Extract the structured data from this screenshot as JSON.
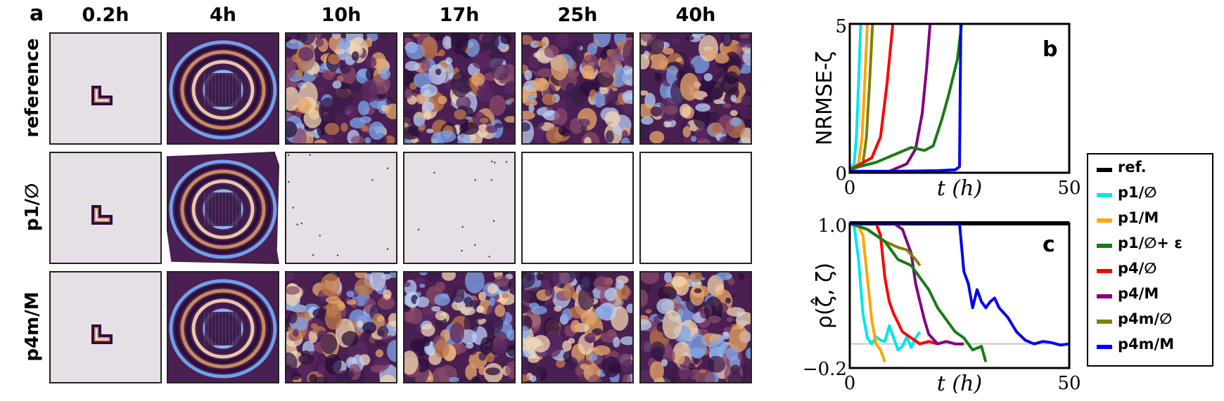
{
  "panel_letters": {
    "a": "a",
    "b": "b",
    "c": "c"
  },
  "columns": [
    "0.2h",
    "4h",
    "10h",
    "17h",
    "25h",
    "40h"
  ],
  "rows": [
    {
      "label": "reference",
      "tiles": [
        "flat-L",
        "field",
        "field",
        "field",
        "field",
        "field"
      ]
    },
    {
      "label": "p1/∅",
      "tiles": [
        "flat-L",
        "field-ragged",
        "flat-dots",
        "flat-dots",
        "empty",
        "empty"
      ]
    },
    {
      "label": "p4m/M",
      "tiles": [
        "flat-L",
        "field",
        "field",
        "field",
        "field",
        "field"
      ]
    }
  ],
  "colors": {
    "ref": "#000000",
    "p1_empty": "#00e5ee",
    "p1_M": "#ffa500",
    "p1_empty_eps": "#1a7a1a",
    "p4_empty": "#ff0000",
    "p4_M": "#800080",
    "p4m_empty": "#808000",
    "p4m_M": "#0000ee"
  },
  "legend": {
    "items": [
      "ref.",
      "p1/∅",
      "p1/M",
      "p1/∅+ ε",
      "p4/∅",
      "p4/M",
      "p4m/∅",
      "p4m/M"
    ]
  },
  "chart_data": [
    {
      "panel": "b",
      "type": "line",
      "ylabel": "NRMSE-ζ",
      "xlabel": "t (h)",
      "xlim": [
        0,
        50
      ],
      "ylim": [
        0,
        5
      ],
      "xticks": [
        "0",
        "50"
      ],
      "yticks": [
        "0",
        "5"
      ],
      "series": [
        {
          "name": "p1/∅",
          "x": [
            0,
            1,
            1.5,
            2.0,
            2.5
          ],
          "y": [
            0.1,
            0.3,
            1.2,
            3.0,
            5
          ]
        },
        {
          "name": "p1/M",
          "x": [
            0,
            2,
            2.8,
            3.4,
            4.0
          ],
          "y": [
            0.1,
            0.3,
            1.2,
            3.0,
            5
          ]
        },
        {
          "name": "p4m/∅",
          "x": [
            0,
            3,
            3.8,
            4.5,
            5.2
          ],
          "y": [
            0.1,
            0.3,
            1.2,
            3.0,
            5
          ]
        },
        {
          "name": "p4/∅",
          "x": [
            0,
            5,
            7,
            8.5,
            9.8
          ],
          "y": [
            0.1,
            0.5,
            1.2,
            3.0,
            5
          ]
        },
        {
          "name": "p4/M",
          "x": [
            0,
            9,
            13,
            15,
            16.5,
            17.5,
            18.3
          ],
          "y": [
            0.05,
            0.05,
            0.3,
            0.8,
            2.0,
            3.5,
            5
          ]
        },
        {
          "name": "p1/∅+ ε",
          "x": [
            0,
            2,
            6,
            10,
            14,
            17,
            19,
            21,
            22.5,
            24.5,
            25.5
          ],
          "y": [
            0.1,
            0.2,
            0.35,
            0.6,
            0.85,
            0.75,
            0.9,
            1.8,
            2.6,
            3.8,
            5
          ]
        },
        {
          "name": "p4m/M",
          "x": [
            0,
            10,
            20,
            24,
            25.0,
            25.3
          ],
          "y": [
            0.05,
            0.05,
            0.07,
            0.1,
            0.2,
            5
          ]
        }
      ]
    },
    {
      "panel": "c",
      "type": "line",
      "ylabel": "ρ(ζ̂, ζ)",
      "xlabel": "t (h)",
      "xlim": [
        0,
        50
      ],
      "ylim": [
        -0.2,
        1.0
      ],
      "xticks": [
        "0",
        "50"
      ],
      "yticks": [
        "1.0",
        "−0.2"
      ],
      "reference_line": 0.0,
      "series": [
        {
          "name": "ref.",
          "x": [
            0,
            50
          ],
          "y": [
            1.0,
            1.0
          ]
        },
        {
          "name": "p1/∅",
          "x": [
            0,
            1,
            2,
            3,
            4,
            5,
            6,
            7,
            8,
            9,
            10,
            11,
            12,
            13,
            14,
            15,
            16
          ],
          "y": [
            1.0,
            0.98,
            0.7,
            0.25,
            0.05,
            0.0,
            0.06,
            0.03,
            0.02,
            0.15,
            0.05,
            -0.05,
            -0.02,
            0.06,
            -0.03,
            0.05,
            0.1
          ]
        },
        {
          "name": "p1/M",
          "x": [
            0,
            2,
            3,
            4,
            5,
            6,
            7,
            8
          ],
          "y": [
            1.0,
            0.98,
            0.9,
            0.55,
            0.2,
            0.0,
            -0.05,
            -0.15
          ]
        },
        {
          "name": "p4/∅",
          "x": [
            0,
            6,
            7,
            8,
            9,
            10,
            12,
            14,
            16,
            18,
            20
          ],
          "y": [
            1.0,
            1.0,
            0.9,
            0.55,
            0.35,
            0.25,
            0.1,
            0.05,
            0.0,
            0.02,
            0.0
          ]
        },
        {
          "name": "p4/M",
          "x": [
            0,
            10,
            12,
            14,
            15,
            16,
            17,
            18,
            20,
            22,
            24,
            26
          ],
          "y": [
            1.0,
            1.0,
            0.95,
            0.75,
            0.5,
            0.35,
            0.2,
            0.08,
            0.0,
            0.02,
            0.0,
            0.0
          ]
        },
        {
          "name": "p4m/∅",
          "x": [
            0,
            4,
            8,
            11,
            13,
            15,
            16
          ],
          "y": [
            1.0,
            0.95,
            0.85,
            0.8,
            0.78,
            0.7,
            0.65
          ]
        },
        {
          "name": "p1/∅+ ε",
          "x": [
            0,
            4,
            8,
            11,
            14,
            16,
            18,
            20,
            22,
            24,
            26,
            28,
            30,
            31
          ],
          "y": [
            1.0,
            0.95,
            0.85,
            0.7,
            0.65,
            0.55,
            0.45,
            0.3,
            0.2,
            0.1,
            0.05,
            -0.05,
            -0.02,
            -0.15
          ]
        },
        {
          "name": "p4m/M",
          "x": [
            0,
            25,
            26,
            27,
            28,
            29,
            30,
            31,
            32,
            33,
            34,
            36,
            38,
            40,
            42,
            44,
            46,
            48,
            50
          ],
          "y": [
            1.0,
            1.0,
            0.6,
            0.5,
            0.3,
            0.45,
            0.35,
            0.3,
            0.35,
            0.38,
            0.3,
            0.22,
            0.1,
            0.03,
            0.0,
            0.02,
            0.01,
            -0.01,
            0.0
          ]
        }
      ]
    }
  ]
}
